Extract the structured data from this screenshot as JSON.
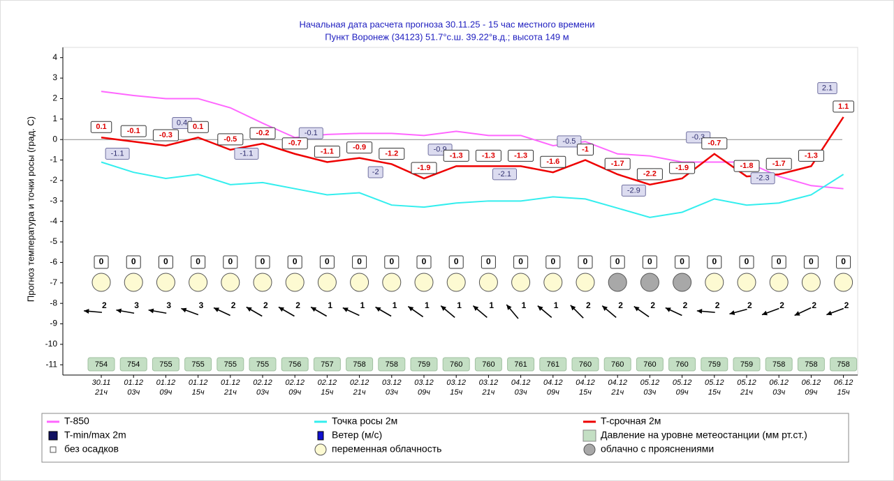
{
  "chart_data": {
    "type": "line",
    "title": "Начальная дата расчета прогноза 30.11.25 - 15 час местного времени",
    "subtitle": "Пункт  Воронеж (34123)   51.7°с.ш.  39.22°в.д.; высота 149 м",
    "y_label": "Прогноз температура и точки росы (град. С)",
    "categories": [
      "30.11",
      "01.12",
      "01.12",
      "01.12",
      "01.12",
      "02.12",
      "02.12",
      "02.12",
      "02.12",
      "03.12",
      "03.12",
      "03.12",
      "03.12",
      "04.12",
      "04.12",
      "04.12",
      "04.12",
      "05.12",
      "05.12",
      "05.12",
      "05.12",
      "06.12",
      "06.12",
      "06.12"
    ],
    "hours": [
      "21ч",
      "03ч",
      "09ч",
      "15ч",
      "21ч",
      "03ч",
      "09ч",
      "15ч",
      "21ч",
      "03ч",
      "09ч",
      "15ч",
      "21ч",
      "03ч",
      "09ч",
      "15ч",
      "21ч",
      "03ч",
      "09ч",
      "15ч",
      "21ч",
      "03ч",
      "09ч",
      "15ч"
    ],
    "ylim": [
      -11.5,
      4.5
    ],
    "yticks": [
      4,
      3,
      2,
      1,
      0,
      -1,
      -2,
      -3,
      -4,
      -5,
      -6,
      -7,
      -8,
      -9,
      -10,
      -11
    ],
    "series": [
      {
        "name": "T-850",
        "color": "#ff66ff",
        "values": [
          2.35,
          2.15,
          2.0,
          2.0,
          1.55,
          0.8,
          0.1,
          0.25,
          0.3,
          0.3,
          0.2,
          0.4,
          0.2,
          0.2,
          -0.3,
          -0.1,
          -0.7,
          -0.8,
          -1.1,
          -1.1,
          -1.1,
          -1.8,
          -2.25,
          -2.4
        ]
      },
      {
        "name": "Точка росы 2м",
        "color": "#33eeee",
        "values": [
          -1.1,
          -1.6,
          -1.9,
          -1.7,
          -2.2,
          -2.1,
          -2.4,
          -2.7,
          -2.6,
          -3.2,
          -3.3,
          -3.1,
          -3.0,
          -3.0,
          -2.8,
          -2.9,
          -3.35,
          -3.8,
          -3.55,
          -2.9,
          -3.2,
          -3.1,
          -2.7,
          -1.7
        ]
      },
      {
        "name": "T-срочная 2м",
        "color": "#ee0000",
        "values": [
          0.1,
          -0.1,
          -0.3,
          0.1,
          -0.5,
          -0.2,
          -0.7,
          -1.1,
          -0.9,
          -1.2,
          -1.9,
          -1.3,
          -1.3,
          -1.3,
          -1.6,
          -1,
          -1.7,
          -2.2,
          -1.9,
          -0.7,
          -1.8,
          -1.7,
          -1.3,
          1.1
        ]
      }
    ],
    "minmax": {
      "name": "T-min/max 2m",
      "color": "#101060",
      "x": [
        0.5,
        2.5,
        4.5,
        6.5,
        8.5,
        10.5,
        12.5,
        14.5,
        16.5,
        18.5,
        20.5,
        22.5
      ],
      "values": [
        -1.1,
        0.4,
        -1.1,
        -0.1,
        -2,
        -0.9,
        -2.1,
        -0.5,
        -2.9,
        -0.3,
        -2.3,
        2.1
      ]
    },
    "precipitation": [
      0,
      0,
      0,
      0,
      0,
      0,
      0,
      0,
      0,
      0,
      0,
      0,
      0,
      0,
      0,
      0,
      0,
      0,
      0,
      0,
      0,
      0,
      0,
      0
    ],
    "cloud_colors": [
      "#fdfad2",
      "#fdfad2",
      "#fdfad2",
      "#fdfad2",
      "#fdfad2",
      "#fdfad2",
      "#fdfad2",
      "#fdfad2",
      "#fdfad2",
      "#fdfad2",
      "#fdfad2",
      "#fdfad2",
      "#fdfad2",
      "#fdfad2",
      "#fdfad2",
      "#fdfad2",
      "#a8a8a8",
      "#a8a8a8",
      "#a8a8a8",
      "#fdfad2",
      "#fdfad2",
      "#fdfad2",
      "#fdfad2",
      "#fdfad2"
    ],
    "wind": {
      "name": "Ветер (м/с)",
      "color": "#1010d0",
      "speeds": [
        2,
        3,
        3,
        3,
        2,
        2,
        2,
        1,
        1,
        1,
        1,
        1,
        1,
        1,
        1,
        2,
        2,
        2,
        2,
        2,
        2,
        2,
        2,
        2
      ],
      "directions": [
        175,
        170,
        170,
        160,
        155,
        150,
        150,
        150,
        155,
        150,
        145,
        140,
        140,
        130,
        140,
        135,
        140,
        145,
        155,
        175,
        195,
        200,
        205,
        200
      ]
    },
    "pressure": {
      "name": "Давление на уровне метеостанции (мм рт.ст.)",
      "color": "#c4dfc4",
      "values": [
        754,
        754,
        755,
        755,
        755,
        755,
        756,
        757,
        758,
        758,
        759,
        760,
        760,
        761,
        761,
        760,
        760,
        760,
        760,
        759,
        759,
        758,
        758,
        758
      ]
    },
    "legend_items": [
      {
        "label": "без осадков",
        "color": "#ffffff"
      },
      {
        "label": "переменная облачность",
        "color": "#fdfad2"
      },
      {
        "label": "облачно с прояснениями",
        "color": "#a8a8a8"
      }
    ]
  }
}
